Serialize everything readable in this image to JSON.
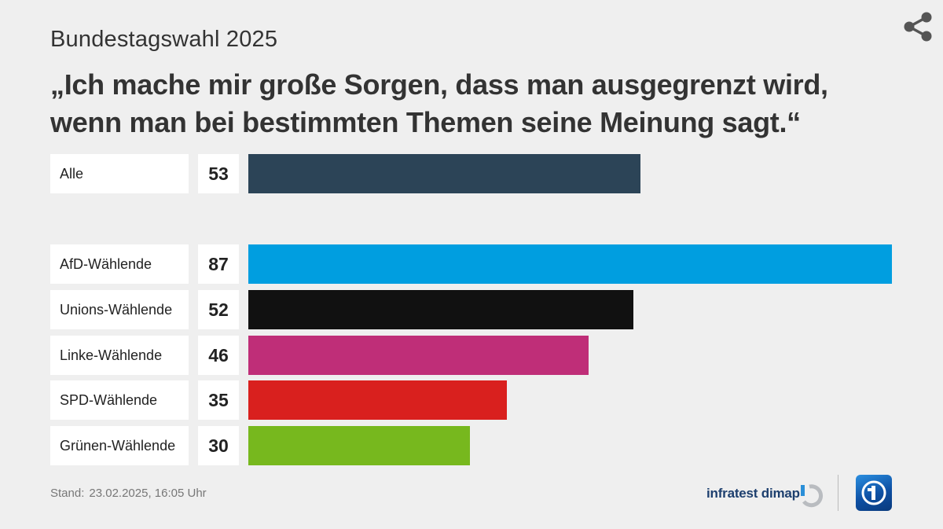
{
  "header": {
    "kicker": "Bundestagswahl 2025",
    "title": "„Ich mache mir große Sorgen, dass man ausgegrenzt wird, wenn man bei bestimmten Themen seine Meinung sagt.“"
  },
  "share": {
    "icon": "share-icon"
  },
  "chart_data": {
    "type": "bar",
    "orientation": "horizontal",
    "title": "„Ich mache mir große Sorgen, dass man ausgegrenzt wird, wenn man bei bestimmten Themen seine Meinung sagt.“",
    "categories": [
      "Alle",
      "AfD-Wählende",
      "Unions-Wählende",
      "Linke-Wählende",
      "SPD-Wählende",
      "Grünen-Wählende"
    ],
    "values": [
      53,
      87,
      52,
      46,
      35,
      30
    ],
    "value_labels": [
      "53",
      "87",
      "52",
      "46",
      "35",
      "30"
    ],
    "colors": [
      "#2c4457",
      "#009ee0",
      "#111111",
      "#bf2e78",
      "#d9201e",
      "#77b81e"
    ],
    "xlim": [
      0,
      87
    ],
    "grid": false,
    "legend": "none"
  },
  "footer": {
    "stand_label": "Stand:",
    "stand_value": "23.02.2025, 16:05 Uhr",
    "brand": "infratest dimap",
    "brand_icon": "infratest-dimap-logo",
    "broadcaster_icon": "ard-logo"
  }
}
